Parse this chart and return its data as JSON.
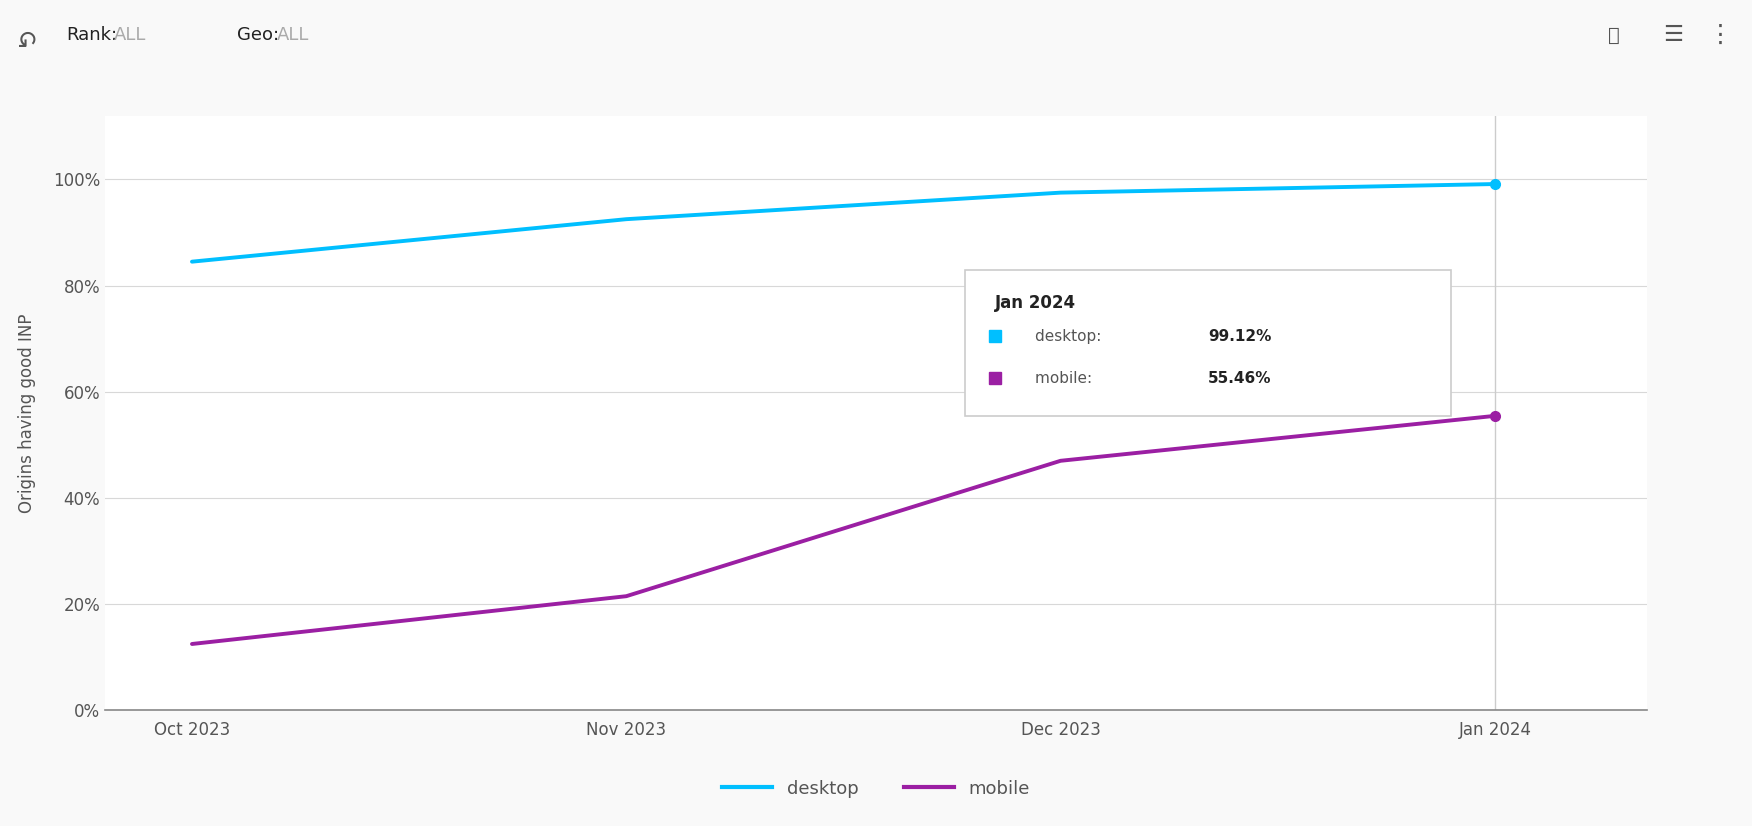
{
  "ylabel": "Origins having good INP",
  "x_labels": [
    "Oct 2023",
    "Nov 2023",
    "Dec 2023",
    "Jan 2024"
  ],
  "x_positions": [
    0,
    1,
    2,
    3
  ],
  "desktop_values": [
    0.845,
    0.925,
    0.975,
    0.9912
  ],
  "mobile_values": [
    0.125,
    0.215,
    0.47,
    0.5546
  ],
  "desktop_color": "#00BFFF",
  "mobile_color": "#9B1FA3",
  "yticks": [
    0.0,
    0.2,
    0.4,
    0.6,
    0.8,
    1.0
  ],
  "ytick_labels": [
    "0%",
    "20%",
    "40%",
    "60%",
    "80%",
    "100%"
  ],
  "background_color": "#ffffff",
  "grid_color": "#d8d8d8",
  "tooltip_title": "Jan 2024",
  "legend_desktop": "desktop",
  "legend_mobile": "mobile",
  "header_rank_label": "Rank:",
  "header_rank_value": "ALL",
  "header_geo_label": "Geo:",
  "header_geo_value": "ALL"
}
